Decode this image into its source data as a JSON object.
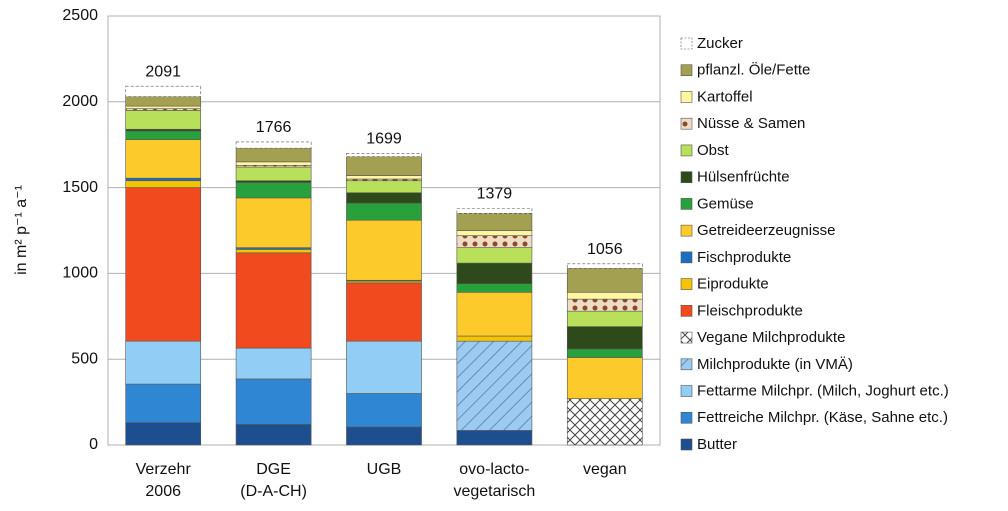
{
  "chart_data": {
    "type": "stacked_bar",
    "y_axis_label": "in m² p⁻¹ a⁻¹",
    "categories": [
      [
        "Verzehr",
        "2006"
      ],
      [
        "DGE",
        "(D-A-CH)"
      ],
      [
        "UGB"
      ],
      [
        "ovo-lacto-",
        "vegetarisch"
      ],
      [
        "vegan"
      ]
    ],
    "totals": [
      2091,
      1766,
      1699,
      1379,
      1056
    ],
    "ylim": [
      0,
      2500
    ],
    "yticks": [
      0,
      500,
      1000,
      1500,
      2000,
      2500
    ],
    "grid": true,
    "legend": "right",
    "series": [
      {
        "name": "Butter",
        "color": "#1d4f8e",
        "values": [
          130,
          120,
          105,
          85,
          0
        ]
      },
      {
        "name": "Fettreiche Milchpr. (Käse, Sahne etc.)",
        "color": "#2f86d2",
        "values": [
          225,
          265,
          195,
          0,
          0
        ]
      },
      {
        "name": "Fettarme Milchpr. (Milch, Joghurt etc.)",
        "color": "#92cdf6",
        "values": [
          250,
          180,
          305,
          0,
          0
        ]
      },
      {
        "name": "Milchprodukte (in VMÄ)",
        "color": "#9ccaf0",
        "values": [
          0,
          0,
          0,
          520,
          0
        ]
      },
      {
        "name": "Vegane Milchprodukte",
        "color": "#ffffff",
        "values": [
          0,
          0,
          0,
          0,
          270
        ]
      },
      {
        "name": "Fleischprodukte",
        "color": "#f04a1e",
        "values": [
          895,
          555,
          340,
          0,
          0
        ]
      },
      {
        "name": "Eiprodukte",
        "color": "#f5c400",
        "values": [
          40,
          20,
          10,
          30,
          0
        ]
      },
      {
        "name": "Fischprodukte",
        "color": "#1c6fc0",
        "values": [
          15,
          10,
          5,
          0,
          0
        ]
      },
      {
        "name": "Getreideerzeugnisse",
        "color": "#fcca2a",
        "values": [
          225,
          290,
          350,
          255,
          240
        ]
      },
      {
        "name": "Gemüse",
        "color": "#28a03c",
        "values": [
          50,
          90,
          100,
          50,
          50
        ]
      },
      {
        "name": "Hülsenfrüchte",
        "color": "#2e4a1a",
        "values": [
          10,
          10,
          60,
          120,
          130
        ]
      },
      {
        "name": "Obst",
        "color": "#b8e05a",
        "values": [
          110,
          80,
          70,
          90,
          90
        ]
      },
      {
        "name": "Nüsse & Samen",
        "color": "#efdcc4",
        "values": [
          10,
          10,
          10,
          70,
          70
        ]
      },
      {
        "name": "Kartoffel",
        "color": "#fff6a0",
        "values": [
          15,
          20,
          20,
          30,
          40
        ]
      },
      {
        "name": "pflanzl. Öle/Fette",
        "color": "#a3a052",
        "values": [
          55,
          80,
          110,
          100,
          140
        ]
      },
      {
        "name": "Zucker",
        "color": "#ffffff",
        "values": [
          61,
          36,
          19,
          29,
          26
        ]
      }
    ]
  }
}
